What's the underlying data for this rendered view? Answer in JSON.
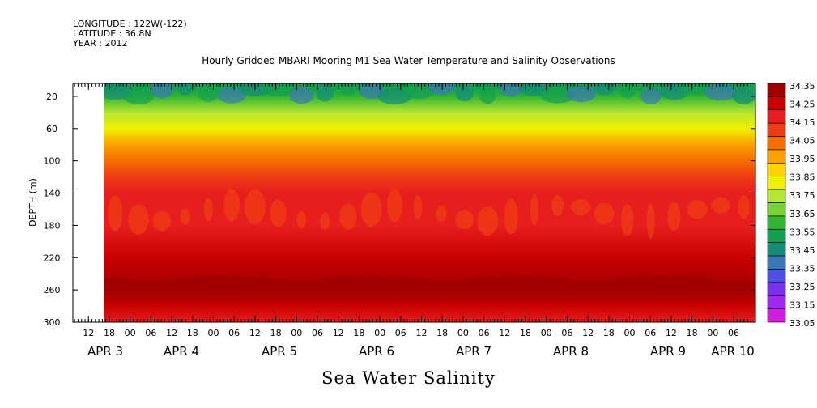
{
  "header": {
    "longitude": "LONGITUDE : 122W(-122)",
    "latitude": "LATITUDE : 36.8N",
    "year": "YEAR : 2012"
  },
  "title": "Hourly Gridded MBARI Mooring M1 Sea Water Temperature and Salinity Observations",
  "bottom_title": "Sea Water Salinity",
  "chart_data": {
    "type": "heatmap",
    "title": "Hourly Gridded MBARI Mooring M1 Sea Water Temperature and Salinity Observations",
    "xlabel": "",
    "ylabel": "DEPTH (m)",
    "ylim": [
      300,
      4
    ],
    "y_ticks": [
      20,
      60,
      100,
      140,
      180,
      220,
      260,
      300
    ],
    "x_hour_ticks": [
      "12",
      "18",
      "00",
      "06",
      "12",
      "18",
      "00",
      "06",
      "12",
      "18",
      "00",
      "06",
      "12",
      "18",
      "00",
      "06",
      "12",
      "18",
      "00",
      "06",
      "12",
      "18",
      "00",
      "06",
      "12",
      "18",
      "00",
      "06",
      "12",
      "18",
      "00",
      "06"
    ],
    "x_date_labels": [
      "APR  3",
      "APR  4",
      "APR  5",
      "APR  6",
      "APR  7",
      "APR  8",
      "APR  9",
      "APR 10"
    ],
    "colorbar_levels": [
      "34.35",
      "34.25",
      "34.15",
      "34.05",
      "33.95",
      "33.85",
      "33.75",
      "33.65",
      "33.55",
      "33.45",
      "33.35",
      "33.25",
      "33.15",
      "33.05"
    ],
    "colorbar_colors": [
      "#a00000",
      "#c80000",
      "#e61e1e",
      "#f03c14",
      "#f56e00",
      "#faa000",
      "#ffd200",
      "#f0f000",
      "#b4e632",
      "#78d232",
      "#32b432",
      "#14a050",
      "#148c78",
      "#3c78b4",
      "#5050e6",
      "#7832f0",
      "#a028f0",
      "#d21edc"
    ],
    "depth_profile": [
      {
        "depth": 10,
        "value": 33.5
      },
      {
        "depth": 20,
        "value": 33.55
      },
      {
        "depth": 40,
        "value": 33.7
      },
      {
        "depth": 60,
        "value": 33.85
      },
      {
        "depth": 80,
        "value": 33.95
      },
      {
        "depth": 100,
        "value": 34.05
      },
      {
        "depth": 120,
        "value": 34.12
      },
      {
        "depth": 140,
        "value": 34.18
      },
      {
        "depth": 180,
        "value": 34.18
      },
      {
        "depth": 220,
        "value": 34.25
      },
      {
        "depth": 260,
        "value": 34.33
      },
      {
        "depth": 280,
        "value": 34.28
      },
      {
        "depth": 300,
        "value": 34.22
      }
    ],
    "grid": false,
    "legend": "right"
  }
}
